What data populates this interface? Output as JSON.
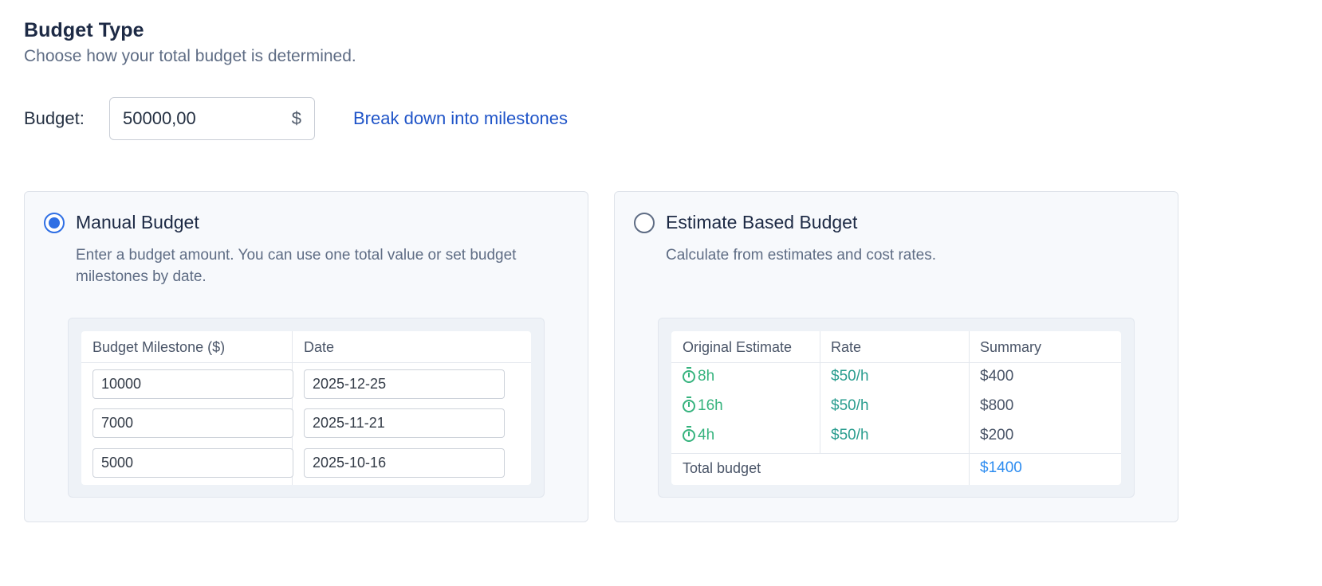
{
  "header": {
    "title": "Budget Type",
    "subtitle": "Choose how your total budget is determined."
  },
  "budget": {
    "label": "Budget:",
    "value": "50000,00",
    "currency": "$",
    "breakdown_link": "Break down into milestones"
  },
  "options": {
    "manual": {
      "title": "Manual Budget",
      "description": "Enter a budget amount. You can use one total value or set budget milestones by date.",
      "selected": true,
      "preview": {
        "headers": [
          "Budget Milestone ($)",
          "Date"
        ],
        "rows": [
          {
            "amount": "10000",
            "date": "2025-12-25"
          },
          {
            "amount": "7000",
            "date": "2025-11-21"
          },
          {
            "amount": "5000",
            "date": "2025-10-16"
          }
        ]
      }
    },
    "estimate": {
      "title": "Estimate Based Budget",
      "description": "Calculate from estimates and cost rates.",
      "selected": false,
      "preview": {
        "headers": [
          "Original Estimate",
          "Rate",
          "Summary"
        ],
        "rows": [
          {
            "estimate": "8h",
            "rate": "$50/h",
            "summary": "$400"
          },
          {
            "estimate": "16h",
            "rate": "$50/h",
            "summary": "$800"
          },
          {
            "estimate": "4h",
            "rate": "$50/h",
            "summary": "$200"
          }
        ],
        "total_label": "Total budget",
        "total_value": "$1400"
      }
    }
  },
  "colors": {
    "accent": "#2f6fe4",
    "link": "#1f54c8",
    "estimate_green": "#36b37e",
    "rate_teal": "#2a9d8f",
    "total_blue": "#2d8cf0"
  },
  "icons": {
    "radio_selected": "radio-selected-icon",
    "radio_unselected": "radio-unselected-icon",
    "estimate": "stopwatch-icon"
  }
}
